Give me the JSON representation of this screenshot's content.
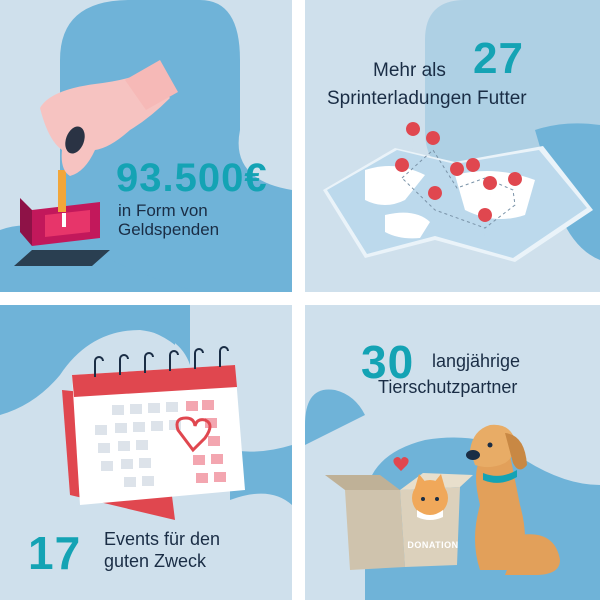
{
  "panels": [
    {
      "number": "93.500€",
      "line1": "in Form von",
      "line2": "Geldspenden",
      "icon": "hand-dropping-coin-into-donation-box"
    },
    {
      "prefix": "Mehr als",
      "number": "27",
      "line2": "Sprinterladungen Futter",
      "icon": "map-with-location-pins"
    },
    {
      "number": "17",
      "line1": "Events für den",
      "line2": "guten Zweck",
      "icon": "calendar-with-heart"
    },
    {
      "number": "30",
      "line1": "langjährige",
      "line2": "Tierschutzpartner",
      "box_label": "DONATION",
      "icon": "cat-in-box-and-dog"
    }
  ],
  "colors": {
    "background": "#cfe0ec",
    "blob": "#6fb3d8",
    "accent": "#14a3b4",
    "text": "#1a2d45",
    "red": "#e0474f"
  }
}
